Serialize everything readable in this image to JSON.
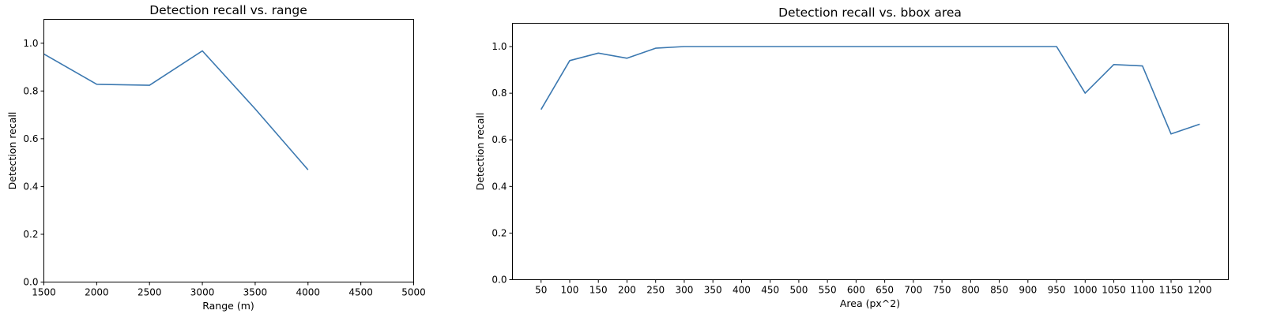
{
  "chart_data": [
    {
      "type": "line",
      "title": "Detection recall vs. range",
      "xlabel": "Range (m)",
      "ylabel": "Detection recall",
      "xlim": [
        1500,
        5000
      ],
      "ylim": [
        0.0,
        1.1
      ],
      "xticks": [
        1500,
        2000,
        2500,
        3000,
        3500,
        4000,
        4500,
        5000
      ],
      "xtick_labels": [
        "1500",
        "2000",
        "2500",
        "3000",
        "3500",
        "4000",
        "4500",
        "5000"
      ],
      "yticks": [
        0.0,
        0.2,
        0.4,
        0.6,
        0.8,
        1.0
      ],
      "ytick_labels": [
        "0.0",
        "0.2",
        "0.4",
        "0.6",
        "0.8",
        "1.0"
      ],
      "grid": false,
      "color": "#3b78b0",
      "x": [
        1500,
        2000,
        2500,
        3000,
        3500,
        4000
      ],
      "y": [
        0.955,
        0.828,
        0.824,
        0.968,
        0.725,
        0.47
      ]
    },
    {
      "type": "line",
      "title": "Detection recall vs. bbox area",
      "xlabel": "Area (px^2)",
      "ylabel": "Detection recall",
      "xlim": [
        0,
        1250
      ],
      "ylim": [
        0.0,
        1.1
      ],
      "xticks": [
        50,
        100,
        150,
        200,
        250,
        300,
        350,
        400,
        450,
        500,
        550,
        600,
        650,
        700,
        750,
        800,
        850,
        900,
        950,
        1000,
        1050,
        1100,
        1150,
        1200
      ],
      "xtick_labels": [
        "50",
        "100",
        "150",
        "200",
        "250",
        "300",
        "350",
        "400",
        "450",
        "500",
        "550",
        "600",
        "650",
        "700",
        "750",
        "800",
        "850",
        "900",
        "950",
        "1000",
        "1050",
        "1100",
        "1150",
        "1200"
      ],
      "yticks": [
        0.0,
        0.2,
        0.4,
        0.6,
        0.8,
        1.0
      ],
      "ytick_labels": [
        "0.0",
        "0.2",
        "0.4",
        "0.6",
        "0.8",
        "1.0"
      ],
      "grid": false,
      "color": "#3b78b0",
      "x": [
        50,
        100,
        150,
        200,
        250,
        300,
        350,
        400,
        450,
        500,
        550,
        600,
        650,
        700,
        750,
        800,
        850,
        900,
        950,
        1000,
        1050,
        1100,
        1150,
        1200
      ],
      "y": [
        0.73,
        0.94,
        0.972,
        0.95,
        0.993,
        1.0,
        1.0,
        1.0,
        1.0,
        1.0,
        1.0,
        1.0,
        1.0,
        1.0,
        1.0,
        1.0,
        1.0,
        1.0,
        1.0,
        0.8,
        0.923,
        0.917,
        0.625,
        0.667
      ]
    }
  ]
}
